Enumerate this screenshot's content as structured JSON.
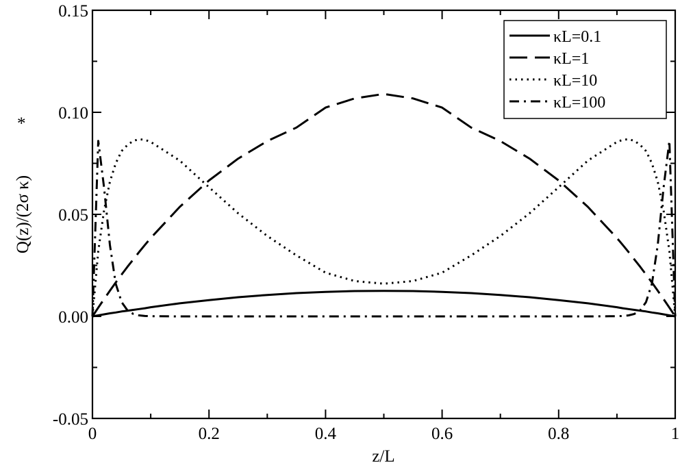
{
  "chart_data": {
    "type": "line",
    "title": "",
    "xlabel": "z/L",
    "ylabel": "Q(z)/(2σ κ)",
    "ylabel_sup": "*",
    "xlim": [
      0,
      1
    ],
    "ylim": [
      -0.05,
      0.15
    ],
    "grid": false,
    "legend_position": "top-right",
    "x_ticks": [
      0,
      0.2,
      0.4,
      0.6,
      0.8,
      1
    ],
    "x_tick_labels": [
      "0",
      "0.2",
      "0.4",
      "0.6",
      "0.8",
      "1"
    ],
    "y_ticks": [
      -0.05,
      0,
      0.05,
      0.1,
      0.15
    ],
    "y_tick_labels": [
      "-0.05",
      "0.00",
      "0.05",
      "0.10",
      "0.15"
    ],
    "x": [
      0,
      0.01,
      0.02,
      0.03,
      0.04,
      0.05,
      0.06,
      0.07,
      0.08,
      0.09,
      0.1,
      0.15,
      0.2,
      0.25,
      0.3,
      0.35,
      0.4,
      0.45,
      0.5,
      0.55,
      0.6,
      0.65,
      0.7,
      0.75,
      0.8,
      0.85,
      0.9,
      0.91,
      0.92,
      0.93,
      0.94,
      0.95,
      0.96,
      0.97,
      0.98,
      0.99,
      1
    ],
    "series": [
      {
        "name": "κL=0.1",
        "style": "solid",
        "values": [
          0,
          0.0005,
          0.001,
          0.0015,
          0.0019,
          0.0024,
          0.0028,
          0.0032,
          0.0036,
          0.004,
          0.0045,
          0.0064,
          0.008,
          0.0094,
          0.0105,
          0.0114,
          0.012,
          0.0124,
          0.0125,
          0.0124,
          0.012,
          0.0114,
          0.0105,
          0.0094,
          0.008,
          0.0064,
          0.0045,
          0.004,
          0.0036,
          0.0032,
          0.0028,
          0.0024,
          0.0019,
          0.0015,
          0.001,
          0.0005,
          0
        ]
      },
      {
        "name": "κL=1",
        "style": "dashed",
        "values": [
          0,
          0.0043,
          0.0085,
          0.0126,
          0.0166,
          0.0205,
          0.0243,
          0.0279,
          0.0315,
          0.035,
          0.0384,
          0.0537,
          0.0666,
          0.0773,
          0.0859,
          0.0925,
          0.1023,
          0.1068,
          0.109,
          0.1068,
          0.1023,
          0.0925,
          0.0859,
          0.0773,
          0.0666,
          0.0537,
          0.0384,
          0.035,
          0.0315,
          0.0279,
          0.0243,
          0.0205,
          0.0166,
          0.0126,
          0.0085,
          0.0043,
          0
        ]
      },
      {
        "name": "κL=10",
        "style": "dotted",
        "values": [
          0,
          0.032,
          0.052,
          0.066,
          0.075,
          0.081,
          0.084,
          0.086,
          0.0868,
          0.0865,
          0.0855,
          0.0763,
          0.0633,
          0.0505,
          0.0394,
          0.0299,
          0.0214,
          0.0173,
          0.016,
          0.0173,
          0.0214,
          0.0299,
          0.0394,
          0.0505,
          0.0633,
          0.0763,
          0.0855,
          0.0865,
          0.0868,
          0.086,
          0.084,
          0.081,
          0.075,
          0.066,
          0.052,
          0.032,
          0
        ]
      },
      {
        "name": "κL=100",
        "style": "dashdot",
        "values": [
          0,
          0.086,
          0.063,
          0.035,
          0.016,
          0.007,
          0.003,
          0.0012,
          0.0005,
          0.0002,
          0.0001,
          0,
          0,
          0,
          0,
          0,
          0,
          0,
          0,
          0,
          0,
          0,
          0,
          0,
          0,
          0,
          0.0001,
          0.0002,
          0.0005,
          0.0012,
          0.003,
          0.007,
          0.016,
          0.035,
          0.063,
          0.086,
          0
        ]
      }
    ]
  }
}
